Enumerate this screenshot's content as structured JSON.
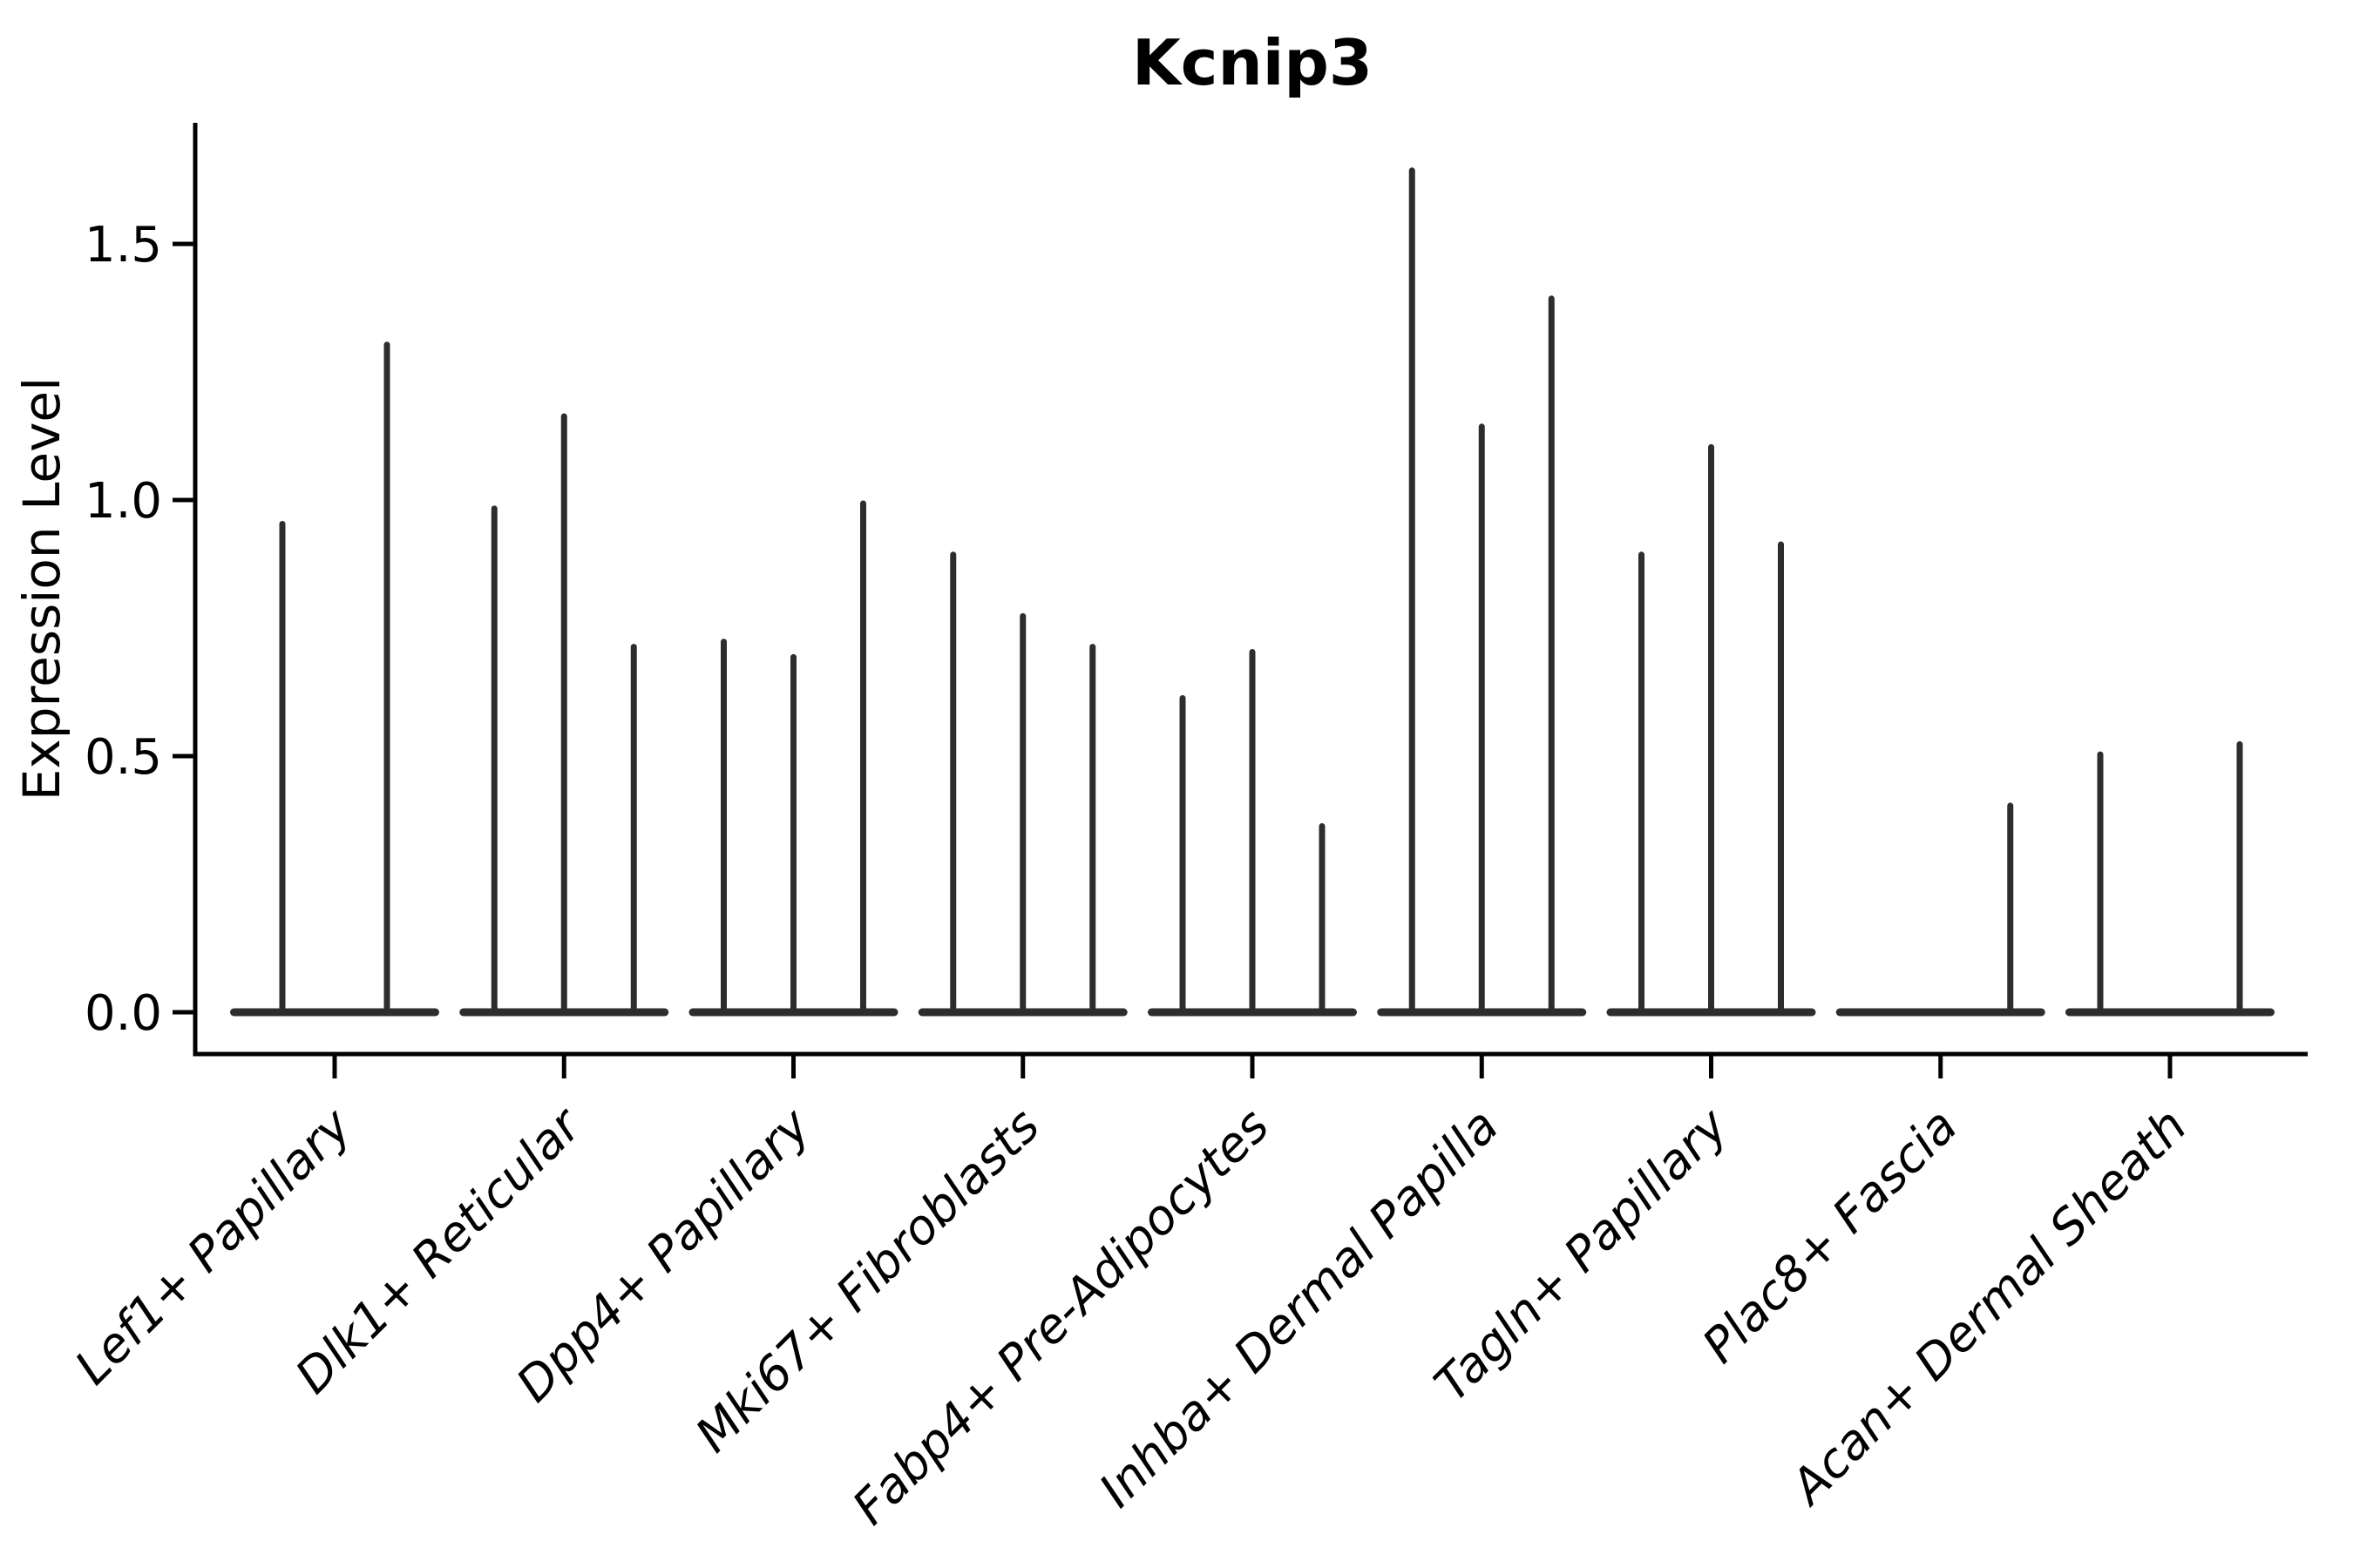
{
  "chart_data": {
    "type": "violin",
    "title": "Kcnip3",
    "ylabel": "Expression Level",
    "xlabel": "",
    "yticks": [
      0.0,
      0.5,
      1.0,
      1.5
    ],
    "ytick_labels": [
      "0.0",
      "0.5",
      "1.0",
      "1.5"
    ],
    "ylim": [
      -0.08,
      1.73
    ],
    "grid": false,
    "legend": "none",
    "violin_style": "narrow spikes with flat base at zero (sparse expression)",
    "categories": [
      "Lef1+ Papillary",
      "Dlk1+ Reticular",
      "Dpp4+ Papillary",
      "Mki67+ Fibroblasts",
      "Fabp4+ Pre-Adipocytes",
      "Inhba+ Dermal Papilla",
      "Tagln+ Papillary",
      "Plac8+ Fascia",
      "Acan+ Dermal Sheath"
    ],
    "groups": [
      {
        "category": "Lef1+ Papillary",
        "violin_maxima": [
          0.96,
          1.31
        ]
      },
      {
        "category": "Dlk1+ Reticular",
        "violin_maxima": [
          0.99,
          1.17,
          0.72
        ]
      },
      {
        "category": "Dpp4+ Papillary",
        "violin_maxima": [
          0.73,
          0.7,
          1.0
        ]
      },
      {
        "category": "Mki67+ Fibroblasts",
        "violin_maxima": [
          0.9,
          0.78,
          0.72
        ]
      },
      {
        "category": "Fabp4+ Pre-Adipocytes",
        "violin_maxima": [
          0.62,
          0.71,
          0.37
        ]
      },
      {
        "category": "Inhba+ Dermal Papilla",
        "violin_maxima": [
          1.65,
          1.15,
          1.4
        ]
      },
      {
        "category": "Tagln+ Papillary",
        "violin_maxima": [
          0.9,
          1.11,
          0.92
        ]
      },
      {
        "category": "Plac8+ Fascia",
        "violin_maxima": [
          0.0,
          0.0,
          0.41
        ]
      },
      {
        "category": "Acan+ Dermal Sheath",
        "violin_maxima": [
          0.51,
          0.0,
          0.53
        ]
      }
    ],
    "colors": {
      "violin": "#2d2d2d",
      "axis": "#000000",
      "text": "#000000",
      "background": "#ffffff"
    }
  }
}
